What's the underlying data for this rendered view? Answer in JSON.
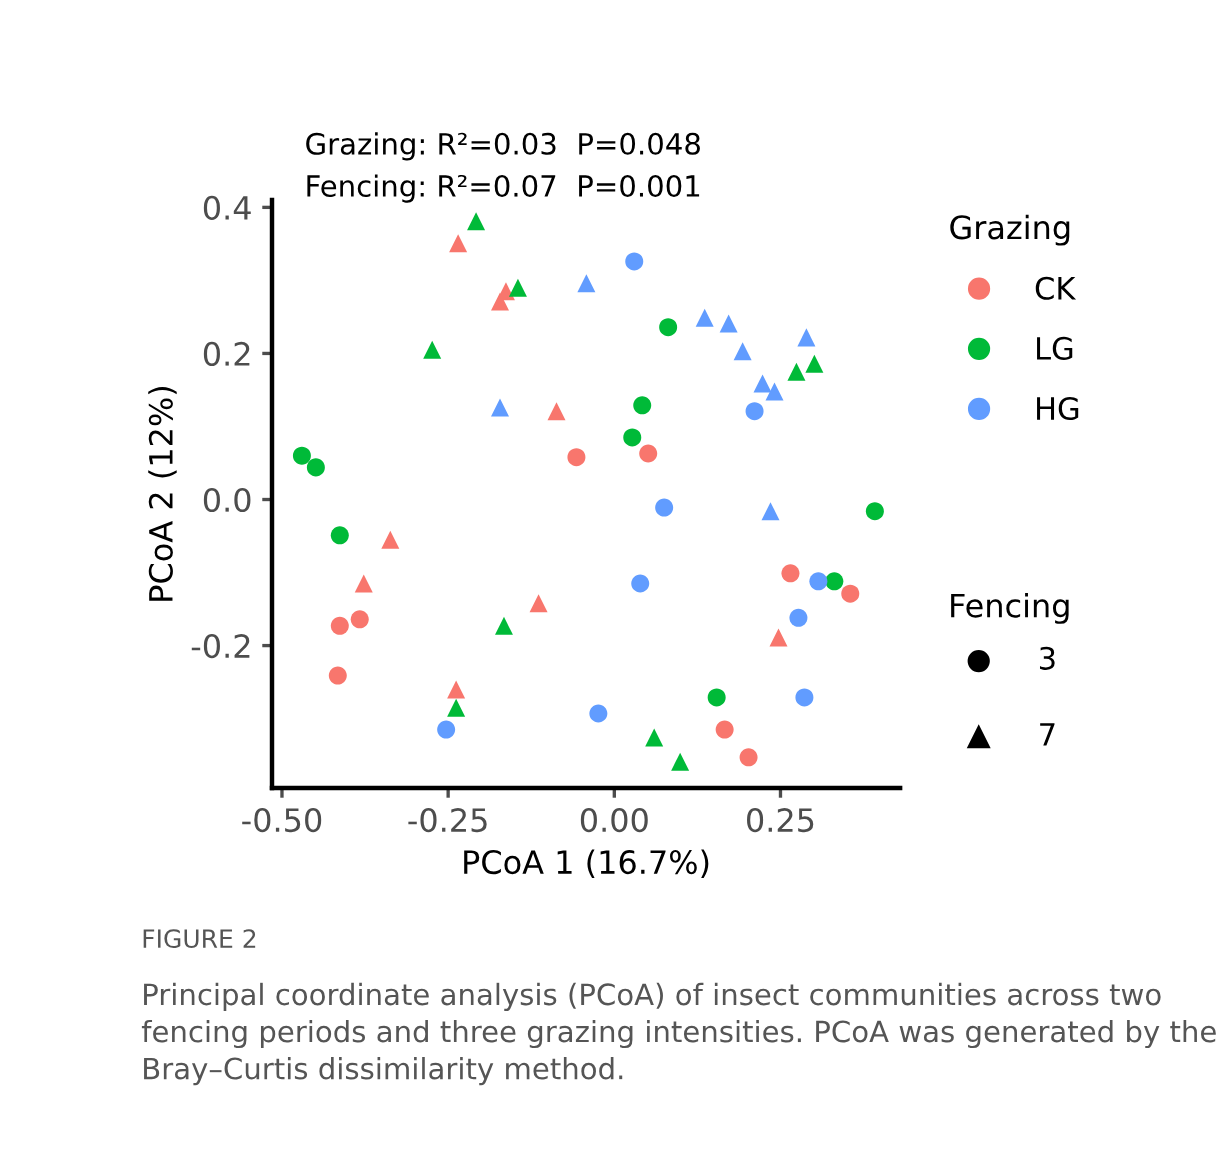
{
  "chart_data": {
    "type": "scatter",
    "title": "Grazing: R²=0.03  P=0.048",
    "subtitle": "Fencing: R²=0.07  P=0.001",
    "xlabel": "PCoA 1 (16.7%)",
    "ylabel": "PCoA 2 (12%)",
    "legend_title": "Grazing",
    "xlim": [
      -0.515,
      0.43
    ],
    "ylim": [
      -0.395,
      0.41
    ],
    "xticks": [
      {
        "value": -0.5,
        "label": "-0.50"
      },
      {
        "value": -0.25,
        "label": "-0.25"
      },
      {
        "value": 0,
        "label": "0.00"
      },
      {
        "value": 0.25,
        "label": "0.25"
      }
    ],
    "yticks": [
      {
        "value": -0.2,
        "label": "-0.2"
      },
      {
        "value": 0,
        "label": "0.0"
      },
      {
        "value": 0.2,
        "label": "0.2"
      },
      {
        "value": 0.4,
        "label": "0.4"
      }
    ],
    "grid": false,
    "legend": "right",
    "series": [
      {
        "name": "CK",
        "color": "#f8766d",
        "marker": "circle",
        "x": [
          -0.057,
          0.051,
          0.265,
          0.355,
          -0.383,
          -0.413,
          -0.416,
          0.166,
          0.202
        ],
        "values": [
          0.058,
          0.063,
          -0.101,
          -0.129,
          -0.164,
          -0.173,
          -0.241,
          -0.315,
          -0.353
        ]
      },
      {
        "color": "#f8766d",
        "marker": "triangle",
        "x": [
          -0.235,
          -0.163,
          -0.172,
          -0.087,
          -0.337,
          -0.377,
          -0.114,
          -0.238,
          0.247
        ],
        "values": [
          0.351,
          0.285,
          0.271,
          0.121,
          -0.055,
          -0.115,
          -0.142,
          -0.26,
          -0.189
        ]
      },
      {
        "name": "LG",
        "color": "#00ba38",
        "marker": "circle",
        "x": [
          -0.47,
          -0.449,
          0.081,
          0.042,
          0.027,
          0.392,
          -0.413,
          0.331,
          0.154
        ],
        "values": [
          0.06,
          0.044,
          0.236,
          0.129,
          0.085,
          -0.016,
          -0.049,
          -0.112,
          -0.271
        ]
      },
      {
        "color": "#00ba38",
        "marker": "triangle",
        "x": [
          -0.208,
          -0.145,
          -0.274,
          0.274,
          0.301,
          -0.166,
          -0.238,
          0.06,
          0.099
        ],
        "values": [
          0.381,
          0.29,
          0.205,
          0.175,
          0.186,
          -0.173,
          -0.285,
          -0.326,
          -0.359
        ]
      },
      {
        "name": "HG",
        "color": "#619cff",
        "marker": "circle",
        "x": [
          0.03,
          0.211,
          0.075,
          -0.253,
          0.039,
          0.307,
          0.277,
          0.286,
          -0.024
        ],
        "values": [
          0.326,
          0.121,
          -0.011,
          -0.315,
          -0.115,
          -0.112,
          -0.162,
          -0.271,
          -0.293
        ]
      },
      {
        "color": "#619cff",
        "marker": "triangle",
        "x": [
          -0.172,
          -0.042,
          0.136,
          0.172,
          0.193,
          0.289,
          0.223,
          0.241,
          0.235
        ],
        "values": [
          0.126,
          0.296,
          0.249,
          0.241,
          0.203,
          0.222,
          0.159,
          0.148,
          -0.016
        ]
      }
    ],
    "annotations": [
      "Fencing",
      "3",
      "7",
      "FIGURE 2",
      "Principal coordinate analysis (PCoA) of insect communities across two fencing periods and three grazing intensities. PCoA was generated by the Bray–Curtis dissimilarity method."
    ]
  }
}
